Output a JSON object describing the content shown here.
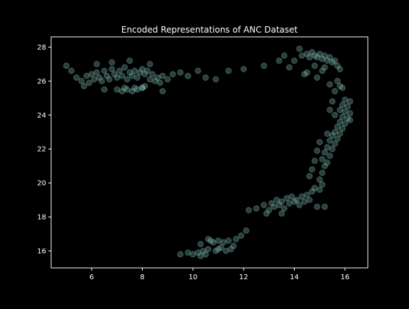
{
  "chart_data": {
    "type": "scatter",
    "title": "Encoded Representations of ANC Dataset",
    "xlabel": "",
    "ylabel": "",
    "xlim": [
      4.4,
      16.9
    ],
    "ylim": [
      15.0,
      28.6
    ],
    "xticks": [
      6,
      8,
      10,
      12,
      14,
      16
    ],
    "yticks": [
      16,
      18,
      20,
      22,
      24,
      26,
      28
    ],
    "grid": false,
    "legend": "none",
    "colors": {
      "background": "#000000",
      "axes": "#ffffff",
      "point": "#8ed5c8"
    },
    "point_alpha": 0.3,
    "series": [
      {
        "values": [
          [
            5.0,
            26.9
          ],
          [
            5.2,
            26.6
          ],
          [
            5.4,
            26.2
          ],
          [
            5.6,
            26.0
          ],
          [
            5.8,
            26.3
          ],
          [
            5.9,
            25.9
          ],
          [
            6.0,
            26.4
          ],
          [
            6.1,
            26.1
          ],
          [
            6.2,
            26.5
          ],
          [
            6.3,
            26.2
          ],
          [
            6.4,
            26.0
          ],
          [
            6.5,
            26.6
          ],
          [
            6.6,
            26.3
          ],
          [
            6.7,
            26.1
          ],
          [
            6.8,
            26.7
          ],
          [
            6.9,
            26.4
          ],
          [
            7.0,
            26.2
          ],
          [
            7.1,
            26.6
          ],
          [
            7.2,
            26.3
          ],
          [
            7.3,
            26.8
          ],
          [
            7.4,
            26.1
          ],
          [
            7.5,
            26.5
          ],
          [
            7.6,
            26.3
          ],
          [
            7.7,
            26.6
          ],
          [
            7.8,
            26.2
          ],
          [
            7.9,
            26.5
          ],
          [
            8.0,
            26.7
          ],
          [
            8.1,
            26.4
          ],
          [
            8.2,
            26.6
          ],
          [
            8.3,
            26.1
          ],
          [
            8.4,
            26.4
          ],
          [
            8.5,
            26.0
          ],
          [
            8.6,
            26.2
          ],
          [
            8.7,
            25.9
          ],
          [
            8.8,
            26.3
          ],
          [
            9.0,
            26.1
          ],
          [
            9.2,
            26.4
          ],
          [
            9.5,
            26.5
          ],
          [
            9.8,
            26.3
          ],
          [
            10.2,
            26.6
          ],
          [
            10.5,
            26.2
          ],
          [
            10.9,
            26.1
          ],
          [
            11.4,
            26.6
          ],
          [
            12.0,
            26.7
          ],
          [
            12.8,
            26.9
          ],
          [
            13.4,
            27.2
          ],
          [
            6.2,
            27.0
          ],
          [
            6.8,
            27.1
          ],
          [
            7.5,
            27.2
          ],
          [
            8.3,
            27.0
          ],
          [
            5.7,
            25.7
          ],
          [
            6.5,
            25.5
          ],
          [
            8.0,
            25.6
          ],
          [
            8.8,
            25.4
          ],
          [
            7.0,
            25.5
          ],
          [
            7.2,
            25.4
          ],
          [
            7.4,
            25.5
          ],
          [
            7.6,
            25.4
          ],
          [
            7.8,
            25.5
          ],
          [
            8.0,
            25.6
          ],
          [
            8.1,
            25.7
          ],
          [
            7.3,
            25.6
          ],
          [
            7.7,
            25.6
          ],
          [
            10.0,
            15.8
          ],
          [
            10.2,
            15.9
          ],
          [
            10.3,
            15.7
          ],
          [
            10.4,
            16.0
          ],
          [
            10.5,
            15.8
          ],
          [
            10.6,
            16.1
          ],
          [
            10.7,
            16.6
          ],
          [
            10.8,
            16.5
          ],
          [
            10.9,
            16.0
          ],
          [
            11.0,
            16.6
          ],
          [
            11.1,
            16.2
          ],
          [
            11.2,
            16.5
          ],
          [
            11.3,
            16.0
          ],
          [
            11.4,
            16.6
          ],
          [
            11.5,
            16.1
          ],
          [
            11.6,
            16.3
          ],
          [
            11.7,
            16.7
          ],
          [
            11.9,
            16.9
          ],
          [
            12.1,
            17.2
          ],
          [
            9.5,
            15.8
          ],
          [
            9.8,
            15.9
          ],
          [
            10.6,
            16.7
          ],
          [
            11.0,
            16.1
          ],
          [
            10.3,
            16.4
          ],
          [
            12.2,
            18.4
          ],
          [
            12.5,
            18.5
          ],
          [
            12.8,
            18.7
          ],
          [
            13.0,
            18.4
          ],
          [
            13.1,
            18.8
          ],
          [
            13.2,
            18.6
          ],
          [
            13.3,
            19.0
          ],
          [
            13.4,
            18.7
          ],
          [
            13.5,
            18.9
          ],
          [
            13.6,
            18.5
          ],
          [
            13.7,
            19.1
          ],
          [
            13.8,
            18.8
          ],
          [
            13.9,
            19.2
          ],
          [
            14.0,
            18.9
          ],
          [
            14.1,
            19.0
          ],
          [
            14.2,
            18.7
          ],
          [
            14.3,
            19.2
          ],
          [
            14.4,
            18.9
          ],
          [
            14.5,
            19.3
          ],
          [
            14.6,
            19.0
          ],
          [
            14.7,
            19.5
          ],
          [
            14.8,
            19.7
          ],
          [
            15.0,
            19.6
          ],
          [
            15.1,
            19.9
          ],
          [
            12.9,
            18.2
          ],
          [
            13.5,
            18.2
          ],
          [
            14.9,
            18.6
          ],
          [
            15.2,
            18.6
          ],
          [
            15.0,
            20.2
          ],
          [
            15.1,
            20.6
          ],
          [
            15.2,
            21.0
          ],
          [
            15.1,
            21.4
          ],
          [
            15.3,
            21.2
          ],
          [
            15.2,
            21.8
          ],
          [
            15.4,
            21.6
          ],
          [
            15.3,
            22.1
          ],
          [
            15.5,
            22.0
          ],
          [
            15.4,
            22.5
          ],
          [
            15.6,
            22.3
          ],
          [
            15.5,
            22.8
          ],
          [
            15.7,
            22.6
          ],
          [
            15.6,
            23.0
          ],
          [
            15.8,
            22.9
          ],
          [
            15.7,
            23.3
          ],
          [
            15.9,
            23.2
          ],
          [
            15.8,
            23.6
          ],
          [
            16.0,
            23.5
          ],
          [
            15.9,
            23.9
          ],
          [
            16.1,
            23.8
          ],
          [
            16.0,
            24.2
          ],
          [
            16.2,
            24.1
          ],
          [
            16.1,
            24.5
          ],
          [
            16.2,
            24.8
          ],
          [
            15.9,
            24.6
          ],
          [
            16.0,
            24.9
          ],
          [
            15.8,
            24.3
          ],
          [
            16.2,
            23.7
          ],
          [
            15.6,
            24.0
          ],
          [
            15.3,
            22.9
          ],
          [
            15.0,
            22.4
          ],
          [
            14.9,
            21.9
          ],
          [
            14.8,
            21.3
          ],
          [
            14.7,
            20.8
          ],
          [
            14.6,
            20.4
          ],
          [
            15.6,
            25.4
          ],
          [
            15.8,
            25.7
          ],
          [
            15.5,
            24.8
          ],
          [
            15.4,
            24.3
          ],
          [
            14.3,
            27.5
          ],
          [
            14.5,
            27.6
          ],
          [
            14.6,
            27.4
          ],
          [
            14.7,
            27.7
          ],
          [
            14.8,
            27.5
          ],
          [
            14.9,
            27.4
          ],
          [
            15.0,
            27.6
          ],
          [
            15.1,
            27.3
          ],
          [
            15.2,
            27.5
          ],
          [
            15.3,
            27.2
          ],
          [
            15.4,
            27.4
          ],
          [
            15.5,
            27.1
          ],
          [
            15.6,
            27.2
          ],
          [
            15.7,
            26.9
          ],
          [
            15.8,
            26.7
          ],
          [
            15.2,
            26.8
          ],
          [
            14.8,
            26.9
          ],
          [
            14.5,
            26.5
          ],
          [
            14.9,
            26.2
          ],
          [
            15.4,
            25.8
          ],
          [
            15.7,
            26.0
          ],
          [
            15.9,
            25.6
          ],
          [
            14.2,
            27.9
          ],
          [
            14.0,
            27.2
          ],
          [
            13.6,
            27.5
          ],
          [
            13.8,
            26.8
          ],
          [
            14.4,
            26.4
          ],
          [
            15.1,
            26.6
          ]
        ]
      }
    ]
  }
}
